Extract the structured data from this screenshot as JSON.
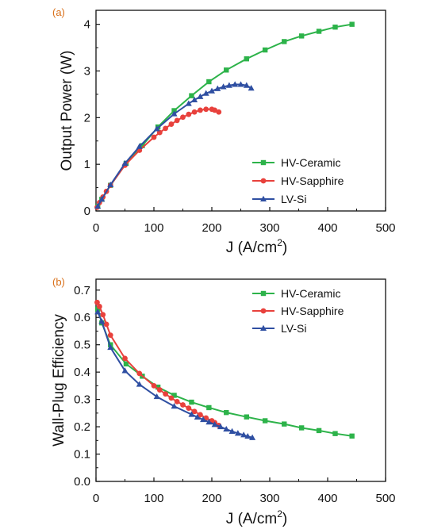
{
  "chart_data": [
    {
      "type": "line",
      "panel_label": "(a)",
      "xlabel_main": "J (A/cm",
      "xlabel_sup": "2",
      "xlabel_close": ")",
      "ylabel": "Output Power (W)",
      "xlim": [
        0,
        500
      ],
      "ylim": [
        0,
        4.3
      ],
      "x_ticks": [
        0,
        100,
        200,
        300,
        400,
        500
      ],
      "y_ticks": [
        0,
        1,
        2,
        3,
        4
      ],
      "legend_position": "lower-right",
      "series": [
        {
          "name": "HV-Ceramic",
          "color": "#2db34a",
          "marker": "square",
          "x": [
            3,
            10,
            25,
            52,
            80,
            107,
            135,
            165,
            195,
            225,
            260,
            292,
            325,
            355,
            385,
            413,
            442
          ],
          "y": [
            0.1,
            0.25,
            0.55,
            1.02,
            1.4,
            1.8,
            2.15,
            2.47,
            2.77,
            3.02,
            3.26,
            3.45,
            3.63,
            3.75,
            3.85,
            3.94,
            4.0
          ]
        },
        {
          "name": "HV-Sapphire",
          "color": "#e8413c",
          "marker": "circle",
          "x": [
            2,
            6,
            12,
            18,
            25,
            50,
            75,
            100,
            110,
            120,
            130,
            140,
            150,
            160,
            170,
            180,
            190,
            200,
            205,
            212
          ],
          "y": [
            0.08,
            0.18,
            0.3,
            0.42,
            0.55,
            0.98,
            1.3,
            1.58,
            1.68,
            1.77,
            1.86,
            1.94,
            2.01,
            2.07,
            2.12,
            2.16,
            2.18,
            2.18,
            2.16,
            2.12
          ]
        },
        {
          "name": "LV-Si",
          "color": "#2f4fa2",
          "marker": "triangle",
          "x": [
            3,
            10,
            25,
            50,
            75,
            105,
            135,
            160,
            170,
            180,
            190,
            200,
            210,
            220,
            230,
            240,
            250,
            260,
            268
          ],
          "y": [
            0.1,
            0.25,
            0.56,
            1.02,
            1.38,
            1.76,
            2.08,
            2.3,
            2.38,
            2.45,
            2.52,
            2.57,
            2.62,
            2.66,
            2.69,
            2.71,
            2.71,
            2.69,
            2.63
          ]
        }
      ]
    },
    {
      "type": "line",
      "panel_label": "(b)",
      "xlabel_main": "J (A/cm",
      "xlabel_sup": "2",
      "xlabel_close": ")",
      "ylabel": "Wall-Plug Efficiency",
      "xlim": [
        0,
        500
      ],
      "ylim": [
        0,
        0.74
      ],
      "x_ticks": [
        0,
        100,
        200,
        300,
        400,
        500
      ],
      "y_ticks": [
        "0.0",
        "0.1",
        "0.2",
        "0.3",
        "0.4",
        "0.5",
        "0.6",
        "0.7"
      ],
      "legend_position": "top-right",
      "series": [
        {
          "name": "HV-Ceramic",
          "color": "#2db34a",
          "marker": "square",
          "x": [
            3,
            10,
            25,
            52,
            80,
            107,
            135,
            165,
            195,
            225,
            260,
            292,
            325,
            355,
            385,
            413,
            442
          ],
          "y": [
            0.63,
            0.58,
            0.5,
            0.43,
            0.385,
            0.345,
            0.315,
            0.29,
            0.27,
            0.252,
            0.236,
            0.222,
            0.21,
            0.196,
            0.186,
            0.175,
            0.166
          ]
        },
        {
          "name": "HV-Sapphire",
          "color": "#e8413c",
          "marker": "circle",
          "x": [
            2,
            6,
            12,
            18,
            25,
            50,
            75,
            100,
            110,
            120,
            130,
            140,
            150,
            160,
            170,
            180,
            190,
            200,
            205,
            212
          ],
          "y": [
            0.655,
            0.64,
            0.61,
            0.575,
            0.535,
            0.45,
            0.395,
            0.35,
            0.335,
            0.32,
            0.305,
            0.292,
            0.28,
            0.268,
            0.256,
            0.244,
            0.232,
            0.222,
            0.215,
            0.205
          ]
        },
        {
          "name": "LV-Si",
          "color": "#2f4fa2",
          "marker": "triangle",
          "x": [
            3,
            10,
            25,
            50,
            75,
            105,
            135,
            165,
            175,
            185,
            195,
            205,
            215,
            225,
            235,
            245,
            255,
            262,
            270
          ],
          "y": [
            0.62,
            0.585,
            0.49,
            0.405,
            0.355,
            0.31,
            0.275,
            0.245,
            0.235,
            0.226,
            0.217,
            0.208,
            0.2,
            0.191,
            0.183,
            0.176,
            0.17,
            0.165,
            0.16
          ]
        }
      ]
    }
  ]
}
